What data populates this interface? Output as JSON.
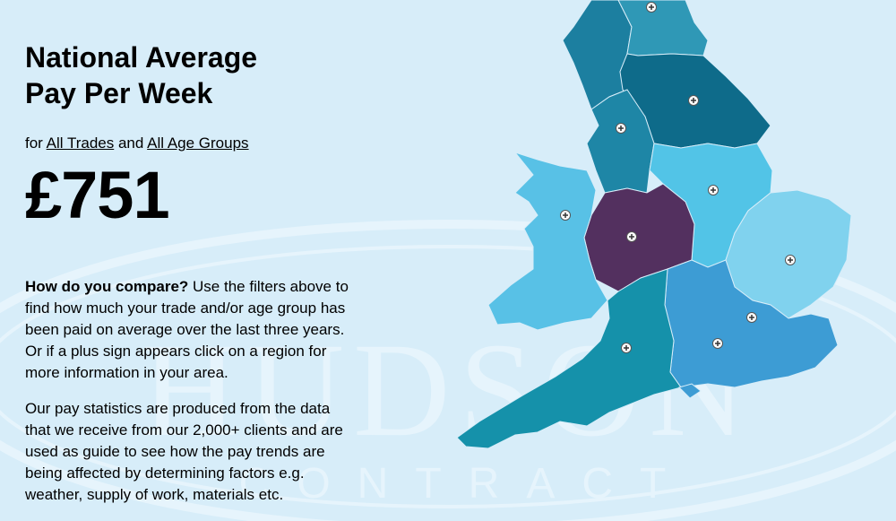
{
  "header": {
    "title": "National Average Pay Per Week"
  },
  "filters": {
    "prefix": "for",
    "trade": "All Trades",
    "joiner": "and",
    "age": "All Age Groups"
  },
  "average_pay": "£751",
  "paragraphs": [
    {
      "lead": "How do you compare?",
      "text": "Use the filters above to find how much your trade and/or age group has been paid on average over the last three years. Or if a plus sign appears click on a region for more information in your area."
    },
    {
      "text": "Our pay statistics are produced from the data that we receive from our 2,000+ clients and are used as guide to see how the pay trends are being affected by determining factors e.g. weather, supply of work, materials etc."
    }
  ],
  "watermark": {
    "line1": "HUDSON",
    "line2": "CONTRACT"
  }
}
